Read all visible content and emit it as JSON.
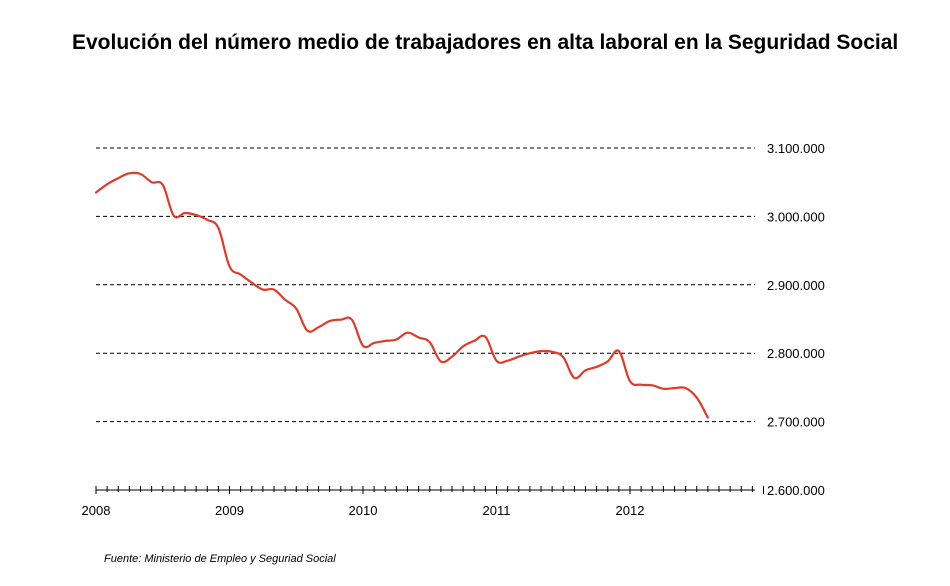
{
  "chart_data": {
    "type": "line",
    "title": "Evolución del número medio de trabajadores en alta laboral en la Seguridad Social",
    "xlabel": "",
    "ylabel": "",
    "ylim": [
      2600000,
      3100000
    ],
    "yticks": [
      {
        "value": 3100000,
        "label": "3.100.000"
      },
      {
        "value": 3000000,
        "label": "3.000.000"
      },
      {
        "value": 2900000,
        "label": "2.900.000"
      },
      {
        "value": 2800000,
        "label": "2.800.000"
      },
      {
        "value": 2700000,
        "label": "2.700.000"
      },
      {
        "value": 2600000,
        "label": "2.600.000"
      }
    ],
    "xticks": [
      {
        "value": 2008,
        "label": "2008"
      },
      {
        "value": 2009,
        "label": "2009"
      },
      {
        "value": 2010,
        "label": "2010"
      },
      {
        "value": 2011,
        "label": "2011"
      },
      {
        "value": 2012,
        "label": "2012"
      }
    ],
    "xlim": [
      2008,
      2013
    ],
    "grid": "horizontal-dashed",
    "y_axis_position": "right",
    "series": [
      {
        "color": "#e03a2a",
        "x": [
          2008.0,
          2008.083,
          2008.167,
          2008.25,
          2008.333,
          2008.417,
          2008.5,
          2008.583,
          2008.667,
          2008.75,
          2008.833,
          2008.917,
          2009.0,
          2009.083,
          2009.167,
          2009.25,
          2009.333,
          2009.417,
          2009.5,
          2009.583,
          2009.667,
          2009.75,
          2009.833,
          2009.917,
          2010.0,
          2010.083,
          2010.167,
          2010.25,
          2010.333,
          2010.417,
          2010.5,
          2010.583,
          2010.667,
          2010.75,
          2010.833,
          2010.917,
          2011.0,
          2011.083,
          2011.167,
          2011.25,
          2011.333,
          2011.417,
          2011.5,
          2011.583,
          2011.667,
          2011.75,
          2011.833,
          2011.917,
          2012.0,
          2012.083,
          2012.167,
          2012.25,
          2012.333,
          2012.417,
          2012.5,
          2012.583
        ],
        "y": [
          3035000,
          3047000,
          3056000,
          3063000,
          3062000,
          3050000,
          3046000,
          3001000,
          3005000,
          3002000,
          2995000,
          2983000,
          2927000,
          2915000,
          2903000,
          2893000,
          2893000,
          2878000,
          2865000,
          2833000,
          2838000,
          2847000,
          2849000,
          2849000,
          2811000,
          2815000,
          2818000,
          2820000,
          2830000,
          2823000,
          2816000,
          2788000,
          2795000,
          2810000,
          2818000,
          2824000,
          2789000,
          2789000,
          2795000,
          2800000,
          2803000,
          2802000,
          2794000,
          2764000,
          2775000,
          2780000,
          2788000,
          2803000,
          2759000,
          2754000,
          2753000,
          2748000,
          2749000,
          2749000,
          2735000,
          2706000
        ]
      }
    ]
  },
  "source": "Fuente: Ministerio de Empleo y Seguriad Social"
}
